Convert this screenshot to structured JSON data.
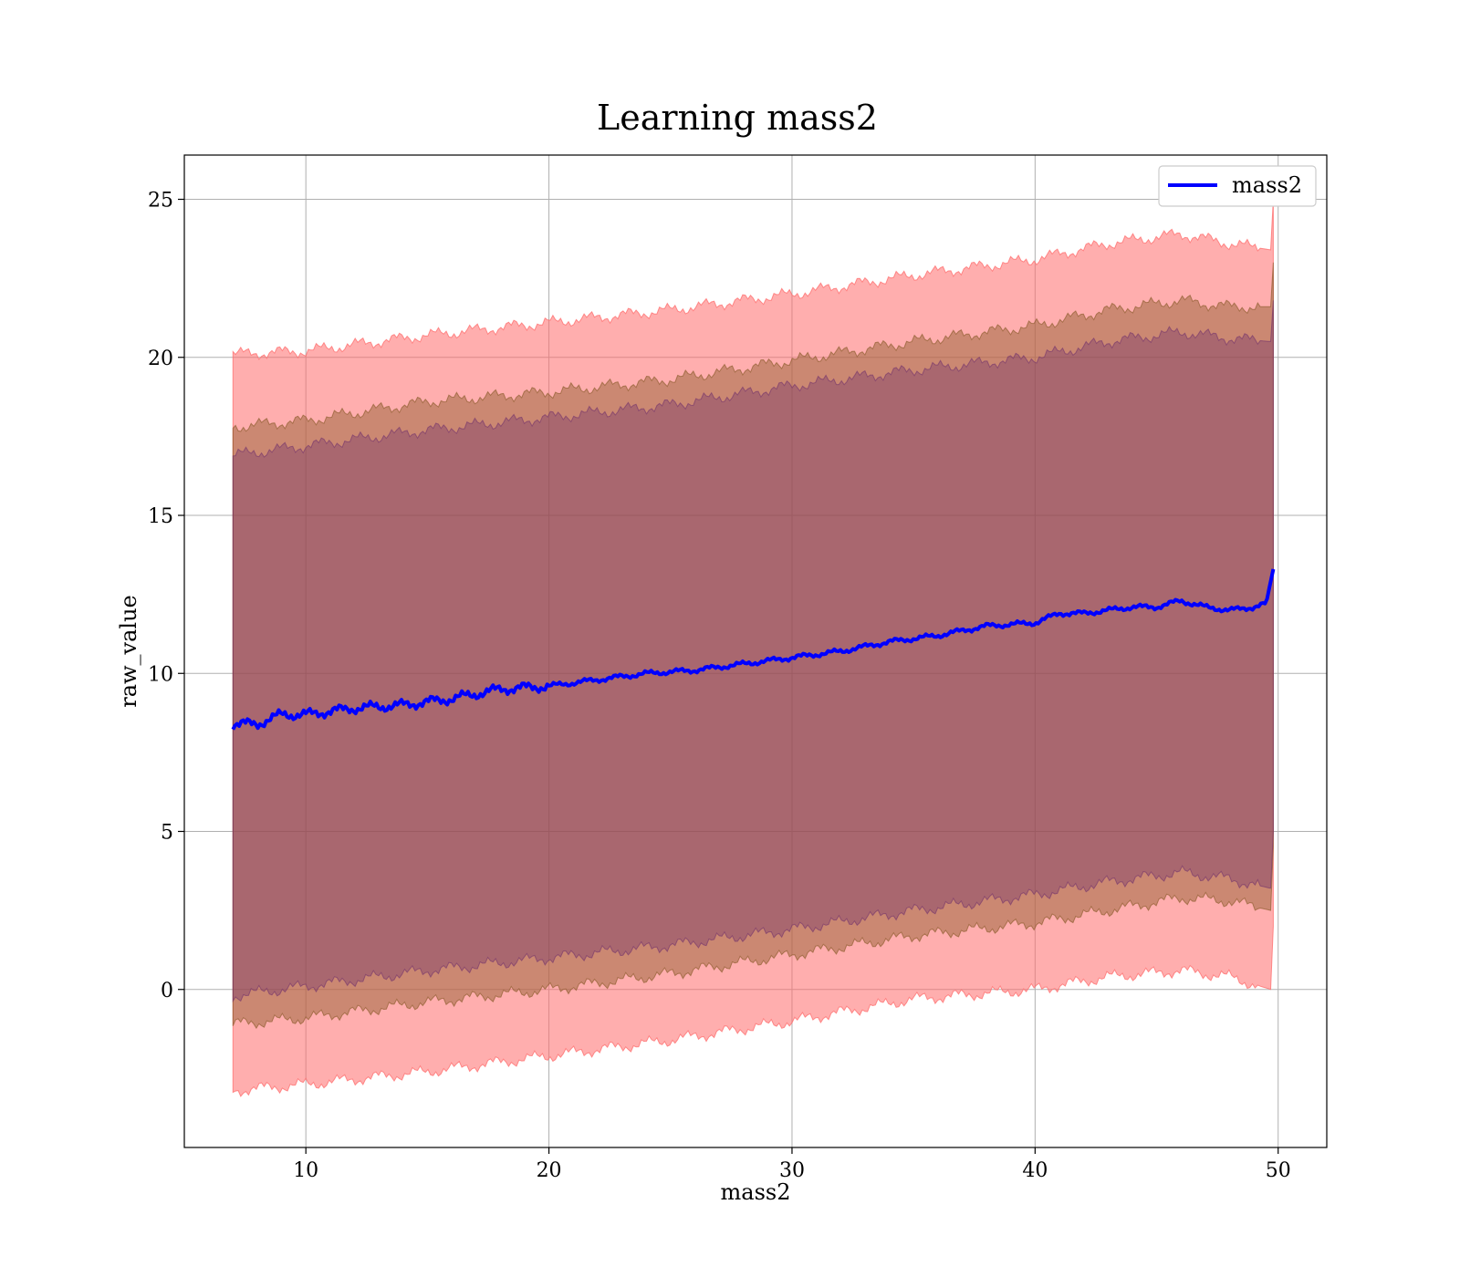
{
  "chart_data": {
    "type": "line",
    "title": "Learning mass2",
    "xlabel": "mass2",
    "ylabel": "raw_value",
    "xlim": [
      5,
      52
    ],
    "ylim": [
      -5,
      26.4
    ],
    "xticks": [
      10,
      20,
      30,
      40,
      50
    ],
    "yticks": [
      0,
      5,
      10,
      15,
      20,
      25
    ],
    "grid": true,
    "legend": {
      "position": "top-right",
      "entries": [
        "mass2"
      ]
    },
    "bands": [
      {
        "label": "outer",
        "color": "#ff6b6b",
        "opacity": 0.55,
        "x": [
          7,
          10,
          15,
          20,
          25,
          30,
          35,
          40,
          43,
          46,
          48,
          49.7,
          49.8
        ],
        "upper": [
          20.1,
          20.2,
          20.7,
          21.1,
          21.5,
          22.0,
          22.6,
          23.1,
          23.6,
          23.9,
          23.6,
          23.4,
          25.0
        ],
        "lower": [
          -3.2,
          -3.0,
          -2.6,
          -2.1,
          -1.6,
          -1.0,
          -0.3,
          0.0,
          0.4,
          0.6,
          0.4,
          0.0,
          2.0
        ]
      },
      {
        "label": "middle",
        "color": "#8b5a2b",
        "opacity": 0.45,
        "x": [
          7,
          10,
          15,
          20,
          25,
          30,
          35,
          40,
          43,
          46,
          48,
          49.7,
          49.8
        ],
        "upper": [
          17.8,
          18.0,
          18.6,
          18.9,
          19.3,
          19.9,
          20.5,
          21.0,
          21.5,
          21.8,
          21.6,
          21.6,
          23.0
        ],
        "lower": [
          -1.1,
          -0.9,
          -0.4,
          0.0,
          0.5,
          1.1,
          1.7,
          2.1,
          2.5,
          2.9,
          2.8,
          2.5,
          4.5
        ]
      },
      {
        "label": "inner",
        "color": "#6b2c6b",
        "opacity": 0.35,
        "x": [
          7,
          10,
          15,
          20,
          25,
          30,
          35,
          40,
          43,
          46,
          48,
          49.7,
          49.8
        ],
        "upper": [
          16.9,
          17.2,
          17.7,
          18.1,
          18.5,
          19.1,
          19.6,
          20.0,
          20.5,
          20.8,
          20.6,
          20.5,
          21.8
        ],
        "lower": [
          -0.2,
          0.1,
          0.6,
          1.0,
          1.4,
          1.9,
          2.5,
          3.0,
          3.4,
          3.7,
          3.5,
          3.2,
          5.0
        ]
      }
    ],
    "series": [
      {
        "name": "mass2",
        "color": "#0000ff",
        "x": [
          7,
          8,
          9,
          10,
          12,
          14,
          16,
          18,
          20,
          22,
          24,
          26,
          28,
          30,
          32,
          34,
          36,
          38,
          40,
          41,
          42,
          43,
          44,
          45,
          46,
          47,
          48,
          49,
          49.5,
          49.8
        ],
        "y": [
          8.4,
          8.4,
          8.7,
          8.7,
          8.9,
          9.0,
          9.2,
          9.5,
          9.6,
          9.8,
          10.0,
          10.1,
          10.3,
          10.5,
          10.7,
          11.0,
          11.2,
          11.5,
          11.6,
          11.9,
          11.9,
          12.0,
          12.1,
          12.1,
          12.3,
          12.1,
          12.0,
          12.1,
          12.2,
          13.3
        ]
      }
    ]
  }
}
